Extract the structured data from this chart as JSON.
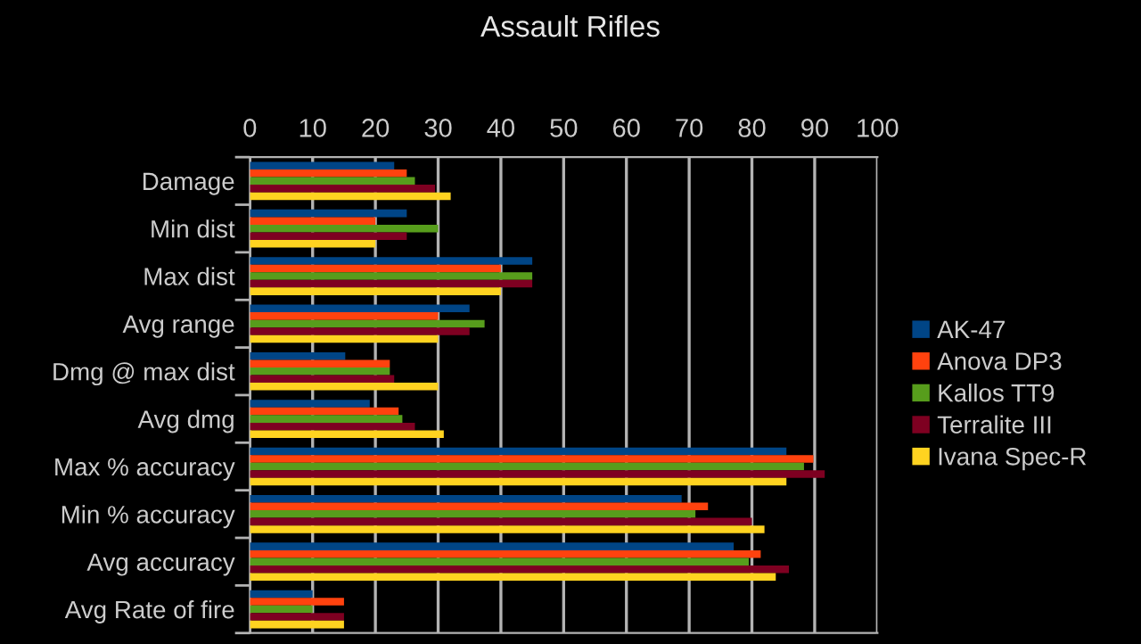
{
  "chart_data": {
    "type": "bar",
    "orientation": "horizontal",
    "title": "Assault Rifles",
    "categories": [
      "Damage",
      "Min dist",
      "Max dist",
      "Avg range",
      "Dmg @ max dist",
      "Avg dmg",
      "Max % accuracy",
      "Min % accuracy",
      "Avg accuracy",
      "Avg Rate of fire"
    ],
    "series": [
      {
        "name": "AK-47",
        "color": "#004586",
        "values": [
          23,
          25,
          45,
          35,
          15.2,
          19.1,
          85.5,
          68.8,
          77.1,
          10
        ]
      },
      {
        "name": "Anova DP3",
        "color": "#ff420e",
        "values": [
          25,
          20,
          40,
          30,
          22.3,
          23.7,
          89.8,
          73,
          81.4,
          15
        ]
      },
      {
        "name": "Kallos TT9",
        "color": "#579d1c",
        "values": [
          26.3,
          30,
          45,
          37.4,
          22.3,
          24.3,
          88.3,
          71,
          79.5,
          10
        ]
      },
      {
        "name": "Terralite III",
        "color": "#7e0021",
        "values": [
          29.5,
          25,
          45,
          35,
          23,
          26.3,
          91.6,
          80,
          85.9,
          15
        ]
      },
      {
        "name": "Ivana Spec-R",
        "color": "#ffd320",
        "values": [
          32,
          20,
          40,
          30,
          30,
          30.9,
          85.5,
          82,
          83.8,
          15
        ]
      }
    ],
    "xlim": [
      0,
      100
    ],
    "xticks": [
      0,
      10,
      20,
      30,
      40,
      50,
      60,
      70,
      80,
      90,
      100
    ],
    "grid": "x",
    "legend": "right"
  }
}
